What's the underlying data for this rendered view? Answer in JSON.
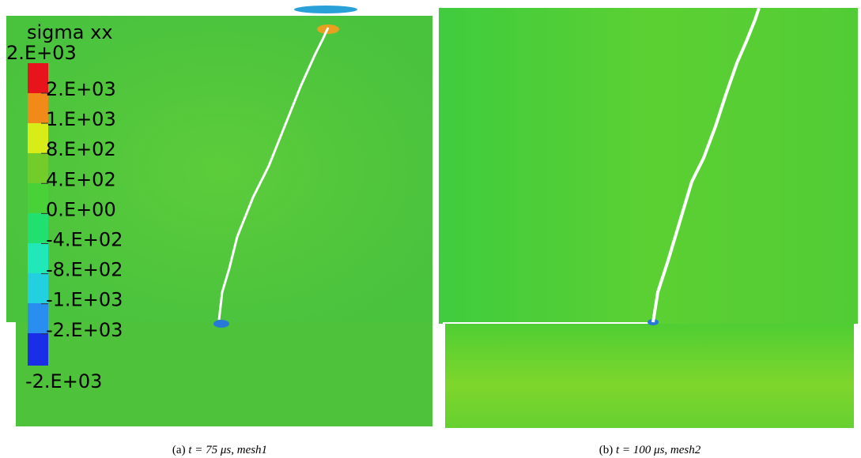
{
  "colorbar": {
    "title": "sigma xx",
    "max": "2.E+03",
    "min": "-2.E+03",
    "labels": [
      "2.E+03",
      "1.E+03",
      "8.E+02",
      "4.E+02",
      "0.E+00",
      "-4.E+02",
      "-8.E+02",
      "-1.E+03",
      "-2.E+03"
    ]
  },
  "captions": [
    {
      "tag": "(a)",
      "time": "t = 75 μs",
      "mesh": "mesh1"
    },
    {
      "tag": "(b)",
      "time": "t = 100 μs",
      "mesh": "mesh2"
    }
  ]
}
